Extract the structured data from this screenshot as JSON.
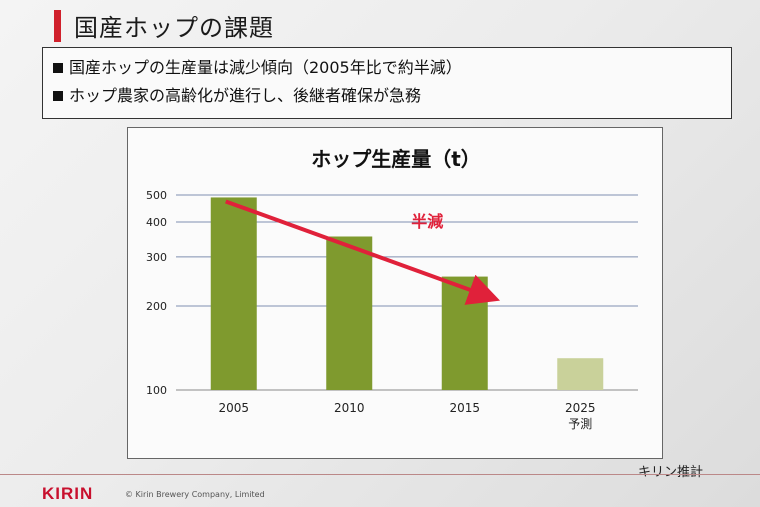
{
  "slide": {
    "title": "国産ホップの課題",
    "bullets": [
      "国産ホップの生産量は減少傾向（2005年比で約半減）",
      "ホップ農家の高齢化が進行し、後継者確保が急務"
    ],
    "source": "キリン推計",
    "logo": "KIRIN",
    "copyright": "© Kirin Brewery Company, Limited"
  },
  "colors": {
    "accent": "#d0202b",
    "bar": "#7f9a2e",
    "bar_forecast": "#c9d19a",
    "arrow": "#e0213a"
  },
  "chart_data": {
    "type": "bar",
    "title": "ホップ生産量（t）",
    "categories": [
      "2005",
      "2010",
      "2015",
      "2025"
    ],
    "category_sublabels": [
      "",
      "",
      "",
      "予測"
    ],
    "values": [
      490,
      355,
      255,
      130
    ],
    "forecast_flags": [
      false,
      false,
      false,
      true
    ],
    "y_scale": "log",
    "ylim": [
      100,
      500
    ],
    "y_ticks": [
      100,
      200,
      300,
      400,
      500
    ],
    "grid": true,
    "annotation": {
      "text": "半減",
      "from_category": "2005",
      "to_category": "2015"
    }
  }
}
